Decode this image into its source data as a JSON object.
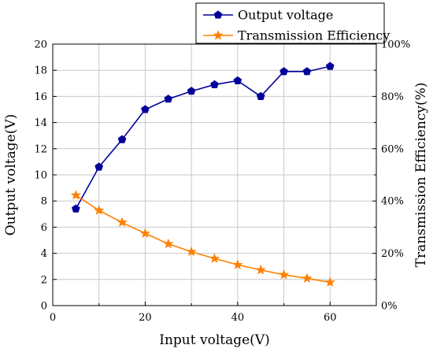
{
  "chart_data": {
    "type": "line",
    "xlabel": "Input voltage(V)",
    "ylabel_left": "Output voltage(V)",
    "ylabel_right": "Transmission Efficiency(%)",
    "xlim": [
      0,
      70
    ],
    "ylim_left": [
      0,
      20
    ],
    "ylim_right": [
      0,
      100
    ],
    "x_ticks": [
      0,
      20,
      40,
      60
    ],
    "y_left_ticks": [
      0,
      2,
      4,
      6,
      8,
      10,
      12,
      14,
      16,
      18,
      20
    ],
    "y_right_ticks": [
      "0%",
      "20%",
      "40%",
      "60%",
      "80%",
      "100%"
    ],
    "y_right_tick_values": [
      0,
      20,
      40,
      60,
      80,
      100
    ],
    "grid": true,
    "legend_placement": "top-right, above plot",
    "series": [
      {
        "name": "Output voltage",
        "axis": "left",
        "color": "#000099",
        "marker": "pentagon",
        "x": [
          5,
          10,
          15,
          20,
          25,
          30,
          35,
          40,
          45,
          50,
          55,
          60
        ],
        "y": [
          7.4,
          10.6,
          12.7,
          15.0,
          15.8,
          16.4,
          16.9,
          17.2,
          16.0,
          17.9,
          17.9,
          18.3
        ]
      },
      {
        "name": "Transmission Efficiency",
        "axis": "right",
        "color": "#ff8000",
        "marker": "star",
        "x": [
          5,
          10,
          15,
          20,
          25,
          30,
          35,
          40,
          45,
          50,
          55,
          60
        ],
        "y": [
          42.2,
          36.4,
          31.8,
          27.6,
          23.6,
          20.6,
          18.0,
          15.6,
          13.6,
          11.8,
          10.4,
          8.9
        ]
      }
    ]
  }
}
